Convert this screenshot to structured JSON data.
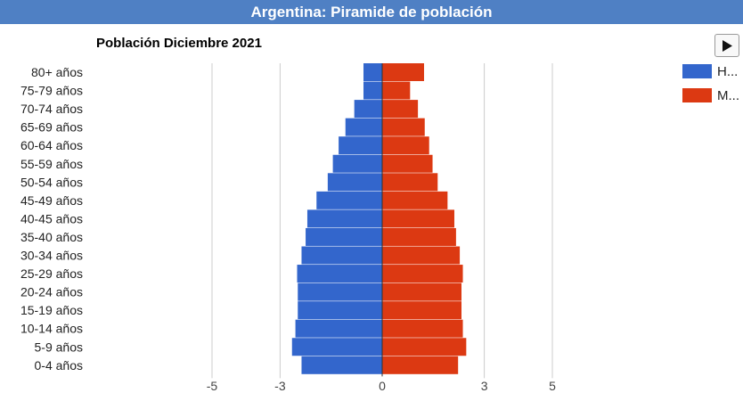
{
  "header": {
    "title": "Argentina: Piramide de población"
  },
  "chart_data": {
    "type": "bar",
    "orientation": "horizontal",
    "title": "Población Diciembre 2021",
    "categories": [
      "80+ años",
      "75-79 años",
      "70-74 años",
      "65-69 años",
      "60-64 años",
      "55-59 años",
      "50-54 años",
      "45-49 años",
      "40-45 años",
      "35-40 años",
      "30-34 años",
      "25-29 años",
      "20-24 años",
      "15-19 años",
      "10-14 años",
      "5-9 años",
      "0-4 años"
    ],
    "series": [
      {
        "name": "H...",
        "color": "#3366cc",
        "values": [
          -0.55,
          -0.55,
          -0.82,
          -1.08,
          -1.28,
          -1.45,
          -1.6,
          -1.93,
          -2.2,
          -2.25,
          -2.37,
          -2.5,
          -2.48,
          -2.48,
          -2.55,
          -2.65,
          -2.37
        ]
      },
      {
        "name": "M...",
        "color": "#dc3912",
        "values": [
          1.23,
          0.82,
          1.05,
          1.25,
          1.38,
          1.48,
          1.63,
          1.92,
          2.12,
          2.17,
          2.28,
          2.37,
          2.33,
          2.33,
          2.37,
          2.47,
          2.23
        ]
      }
    ],
    "xticks": [
      -5,
      -3,
      0,
      3,
      5
    ],
    "xtick_labels": [
      "-5",
      "-3",
      "0",
      "3",
      "5"
    ],
    "gridlines": true,
    "legend_position": "right"
  },
  "controls": {
    "play_icon": "play-icon"
  }
}
